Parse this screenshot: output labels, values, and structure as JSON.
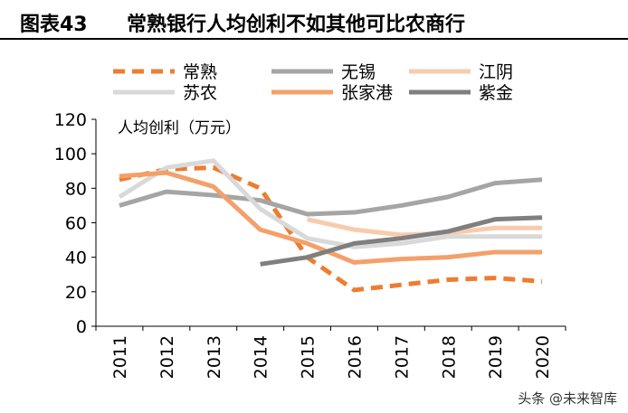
{
  "header": {
    "figure_label": "图表43",
    "title": "常熟银行人均创利不如其他可比农商行"
  },
  "watermark": "头条 @未来智库",
  "chart_data": {
    "type": "line",
    "title": "常熟银行人均创利不如其他可比农商行",
    "ylabel": "人均创利（万元）",
    "xlabel": "",
    "ylim": [
      0,
      120
    ],
    "yticks": [
      0,
      20,
      40,
      60,
      80,
      100,
      120
    ],
    "categories": [
      "2011",
      "2012",
      "2013",
      "2014",
      "2015",
      "2016",
      "2017",
      "2018",
      "2019",
      "2020"
    ],
    "series": [
      {
        "name": "常熟",
        "color": "#ED7D31",
        "dashed": true,
        "values": [
          85,
          91,
          92,
          80,
          40,
          21,
          24,
          27,
          28,
          26
        ]
      },
      {
        "name": "无锡",
        "color": "#A5A5A5",
        "dashed": false,
        "values": [
          70,
          78,
          76,
          73,
          65,
          66,
          70,
          75,
          83,
          85
        ]
      },
      {
        "name": "江阴",
        "color": "#F8CBAD",
        "dashed": false,
        "values": [
          null,
          null,
          null,
          null,
          62,
          56,
          53,
          54,
          57,
          57
        ]
      },
      {
        "name": "苏农",
        "color": "#D9D9D9",
        "dashed": false,
        "values": [
          75,
          92,
          96,
          68,
          51,
          46,
          48,
          52,
          52,
          52
        ]
      },
      {
        "name": "张家港",
        "color": "#F4A06A",
        "dashed": false,
        "values": [
          87,
          89,
          81,
          56,
          48,
          37,
          39,
          40,
          43,
          43
        ]
      },
      {
        "name": "紫金",
        "color": "#7F7F7F",
        "dashed": false,
        "values": [
          null,
          null,
          null,
          36,
          40,
          48,
          51,
          55,
          62,
          63
        ]
      }
    ]
  }
}
